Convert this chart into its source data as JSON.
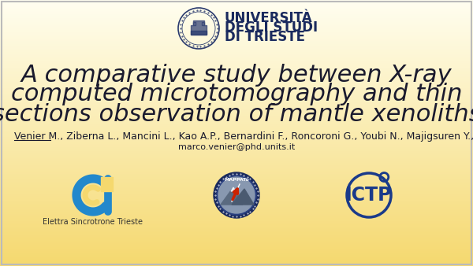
{
  "background_top": "#fffef0",
  "background_bottom": "#f5d86e",
  "title_line1": "A comparative study between X-ray",
  "title_line2": "computed microtomography and thin",
  "title_line3": "sections observation of mantle xenoliths",
  "title_color": "#1a1a2e",
  "title_fontsize": 22,
  "university_name_line1": "UNIVERSITÀ",
  "university_name_line2": "DEGLI STUDI",
  "university_name_line3": "DI TRIESTE",
  "university_color": "#1a2a5e",
  "authors": "Venier M., Ziberna L., Mancini L., Kao A.P., Bernardini F., Roncoroni G., Youbi N., Majigsuren Y., Lenaz D., De Min A.",
  "email": "marco.venier@phd.units.it",
  "authors_color": "#1a1a2e",
  "authors_fontsize": 9,
  "email_fontsize": 8,
  "logo1_label": "Elettra Sincrotrone Trieste",
  "logo_label_fontsize": 7,
  "border_color": "#bbbbbb"
}
